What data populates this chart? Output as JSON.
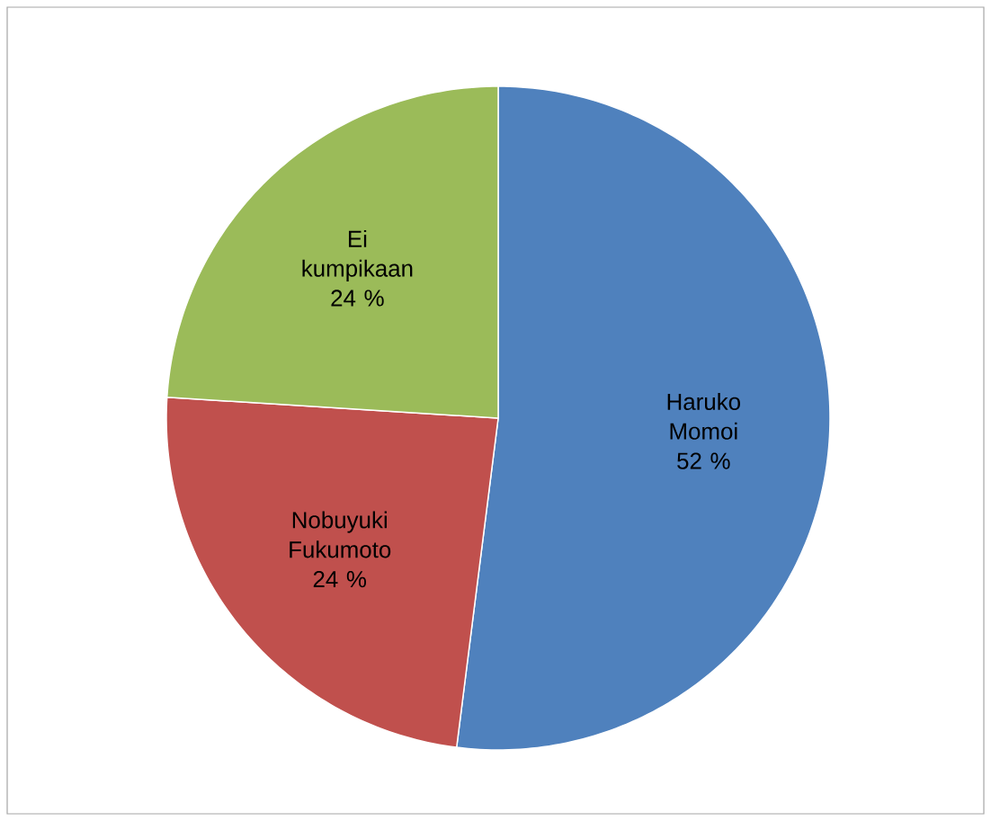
{
  "chart_data": {
    "type": "pie",
    "categories": [
      "Haruko Momoi",
      "Nobuyuki Fukumoto",
      "Ei kumpikaan"
    ],
    "values": [
      52,
      24,
      24
    ],
    "colors": [
      "#4f81bd",
      "#c0504d",
      "#9bbb59"
    ],
    "value_labels": [
      "52 %",
      "24 %",
      "24 %"
    ]
  }
}
